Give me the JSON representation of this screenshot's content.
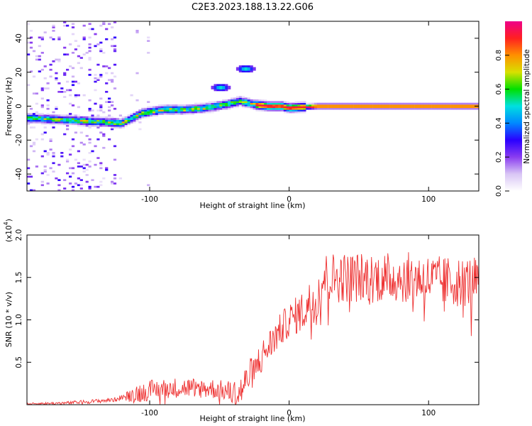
{
  "title": "C2E3.2023.188.13.22.G06",
  "chart_data": [
    {
      "type": "heatmap",
      "xlabel": "Height of straight line (km)",
      "ylabel": "Frequency (Hz)",
      "xlim": [
        -188,
        136
      ],
      "ylim": [
        -50,
        50
      ],
      "xticks": [
        -100,
        0,
        100
      ],
      "yticks": [
        -40,
        -20,
        0,
        20,
        40
      ],
      "colorbar": {
        "label": "Normalized spectral amplitude",
        "range": [
          0,
          1
        ],
        "ticks": [
          "0.0",
          "0.2",
          "0.4",
          "0.6",
          "0.8"
        ],
        "colormap": [
          "#ffffff",
          "#d9c6f5",
          "#8a3cf0",
          "#2a00ff",
          "#0088ff",
          "#00e0e0",
          "#00e000",
          "#d8e000",
          "#ff9000",
          "#ff2020",
          "#ee0088"
        ]
      },
      "ridge": {
        "x": [
          -188,
          -160,
          -140,
          -120,
          -105,
          -90,
          -75,
          -60,
          -45,
          -35,
          -25,
          -15,
          -5,
          0,
          20,
          60,
          100,
          136
        ],
        "y": [
          -7,
          -8,
          -9,
          -10,
          -4,
          -2,
          -2,
          -1,
          1,
          3,
          1,
          0,
          0,
          -1,
          0,
          0,
          0,
          0
        ]
      },
      "features": [
        {
          "x": -50,
          "y": 11,
          "label": "blob"
        },
        {
          "x": -32,
          "y": 22,
          "label": "blob"
        }
      ]
    },
    {
      "type": "line",
      "xlabel": "Height of straight line (km)",
      "ylabel": "SNR (10 * v/v)",
      "scale_label": "(x10",
      "scale_exp": "4",
      "scale_close": ")",
      "xlim": [
        -188,
        136
      ],
      "ylim": [
        0,
        2.0
      ],
      "xticks": [
        -100,
        0,
        100
      ],
      "yticks": [
        "0.5",
        "1.0",
        "1.5",
        "2.0"
      ],
      "color": "#ee3333",
      "profile": {
        "x": [
          -188,
          -160,
          -140,
          -125,
          -118,
          -110,
          -100,
          -85,
          -70,
          -55,
          -42,
          -36,
          -30,
          -20,
          -10,
          0,
          10,
          20,
          25,
          35,
          50,
          70,
          90,
          110,
          136
        ],
        "y": [
          0.01,
          0.02,
          0.04,
          0.06,
          0.1,
          0.13,
          0.17,
          0.2,
          0.2,
          0.19,
          0.15,
          0.12,
          0.3,
          0.55,
          0.8,
          1.0,
          1.1,
          1.3,
          1.5,
          1.5,
          1.5,
          1.5,
          1.5,
          1.45,
          1.45
        ]
      },
      "noise": {
        "x": [
          -188,
          -118,
          -110,
          -45,
          -35,
          0,
          20,
          136
        ],
        "amplitude": [
          0.01,
          0.03,
          0.12,
          0.12,
          0.2,
          0.2,
          0.3,
          0.3
        ]
      }
    }
  ]
}
